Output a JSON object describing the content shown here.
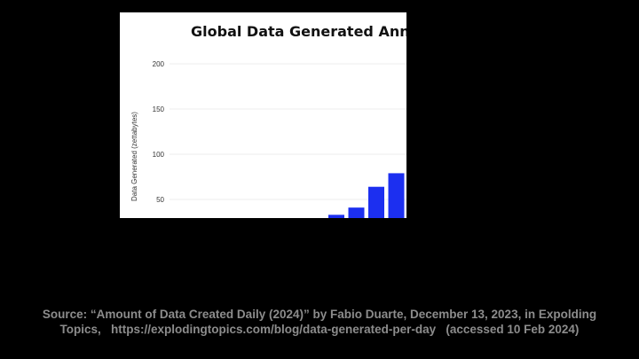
{
  "colors": {
    "background": "#000000",
    "panel": "#ffffff",
    "bar": "#1c2ff0",
    "caption": "#8c8c8c",
    "axis_text": "#333333",
    "gridline": "#eeeeee"
  },
  "chart_data": {
    "type": "bar",
    "title": "Global Data Generated Annua",
    "ylabel": "Data Generated (zettabytes)",
    "xlabel": "",
    "ylim": [
      20,
      200
    ],
    "yticks": [
      50,
      100,
      150,
      200
    ],
    "grid": true,
    "values": [
      33,
      41,
      64,
      79
    ]
  },
  "caption": {
    "line1": "Source: “Amount of Data Created Daily (2024)” by Fabio Duarte, December 13, 2023, in Expolding",
    "line2": "Topics,   https://explodingtopics.com/blog/data-generated-per-day   (accessed 10 Feb 2024)"
  }
}
